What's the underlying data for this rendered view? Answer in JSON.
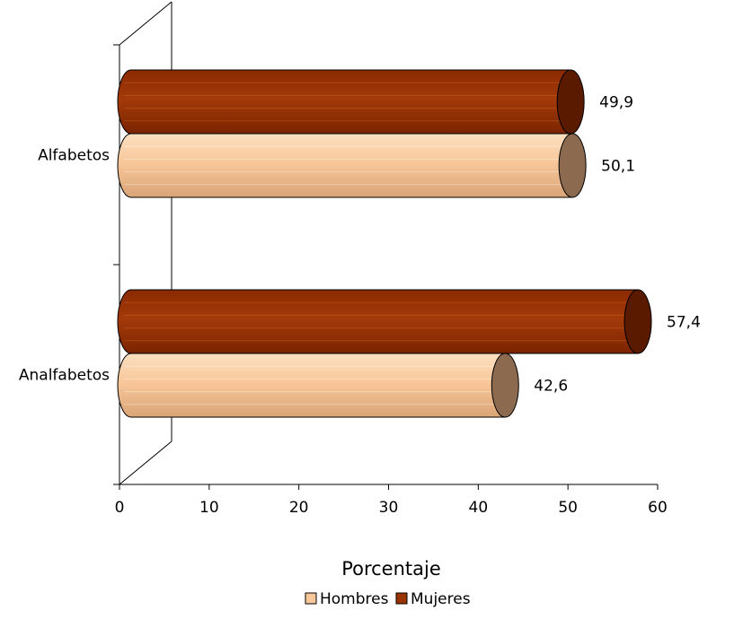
{
  "chart_data": {
    "type": "bar",
    "orientation": "horizontal",
    "style": "3d-cylinder",
    "categories": [
      "Alfabetos",
      "Analfabetos"
    ],
    "series": [
      {
        "name": "Hombres",
        "color": "#F8C79A",
        "values": [
          50.1,
          42.6
        ],
        "value_labels": [
          "50,1",
          "42,6"
        ]
      },
      {
        "name": "Mujeres",
        "color": "#993300",
        "values": [
          49.9,
          57.4
        ],
        "value_labels": [
          "49,9",
          "57,4"
        ]
      }
    ],
    "xlabel": "Porcentaje",
    "xlim": [
      0,
      60
    ],
    "x_ticks": [
      "0",
      "10",
      "20",
      "30",
      "40",
      "50",
      "60"
    ],
    "grid": false,
    "legend_position": "bottom"
  }
}
